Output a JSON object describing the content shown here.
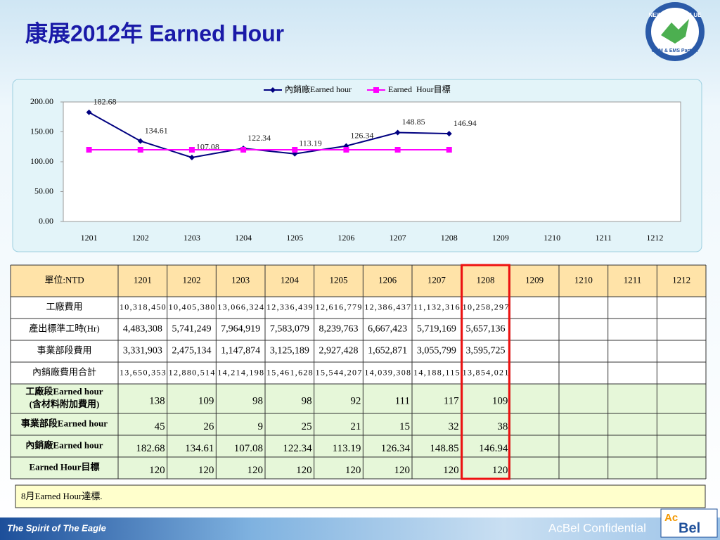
{
  "header": {
    "title": "康展2012年 Earned Hour"
  },
  "logo": {
    "ring_top": "NEW KINPO VALUE",
    "ring_bottom": "ODM & EMS Partner"
  },
  "chart_data": {
    "type": "line",
    "categories": [
      "1201",
      "1202",
      "1203",
      "1204",
      "1205",
      "1206",
      "1207",
      "1208",
      "1209",
      "1210",
      "1211",
      "1212"
    ],
    "series": [
      {
        "name": "內銷廠Earned hour",
        "color": "#000080",
        "marker": "diamond",
        "values": [
          182.68,
          134.61,
          107.08,
          122.34,
          113.19,
          126.34,
          148.85,
          146.94,
          null,
          null,
          null,
          null
        ]
      },
      {
        "name": "Earned  Hour目標",
        "color": "#ff00ff",
        "marker": "square",
        "values": [
          120,
          120,
          120,
          120,
          120,
          120,
          120,
          120,
          null,
          null,
          null,
          null
        ]
      }
    ],
    "data_labels_series": 0,
    "ylim": [
      0,
      200
    ],
    "yticks": [
      {
        "value": 0,
        "label": "0.00"
      },
      {
        "value": 50,
        "label": "50.00"
      },
      {
        "value": 100,
        "label": "100.00"
      },
      {
        "value": 150,
        "label": "150.00"
      },
      {
        "value": 200,
        "label": "200.00"
      }
    ],
    "grid": false,
    "legend": "top"
  },
  "table": {
    "header": [
      "單位:NTD",
      "1201",
      "1202",
      "1203",
      "1204",
      "1205",
      "1206",
      "1207",
      "1208",
      "1209",
      "1210",
      "1211",
      "1212"
    ],
    "highlight_column": "1208",
    "rows": [
      {
        "label": [
          "工廠費用"
        ],
        "cells": [
          "10,318,450",
          "10,405,380",
          "13,066,324",
          "12,336,439",
          "12,616,779",
          "12,386,437",
          "11,132,316",
          "10,258,297"
        ]
      },
      {
        "label": [
          "產出標準工時(Hr)"
        ],
        "cells": [
          "4,483,308",
          "5,741,249",
          "7,964,919",
          "7,583,079",
          "8,239,763",
          "6,667,423",
          "5,719,169",
          "5,657,136"
        ]
      },
      {
        "label": [
          "事業部段費用"
        ],
        "cells": [
          "3,331,903",
          "2,475,134",
          "1,147,874",
          "3,125,189",
          "2,927,428",
          "1,652,871",
          "3,055,799",
          "3,595,725"
        ]
      },
      {
        "label": [
          "內銷廠費用合計"
        ],
        "cells": [
          "13,650,353",
          "12,880,514",
          "14,214,198",
          "15,461,628",
          "15,544,207",
          "14,039,308",
          "14,188,115",
          "13,854,021"
        ]
      },
      {
        "label": [
          "工廠段Earned hour",
          "(含材料附加費用)"
        ],
        "cells": [
          138,
          109,
          98,
          98,
          92,
          111,
          117,
          109
        ]
      },
      {
        "label": [
          "事業部段Earned hour"
        ],
        "cells": [
          45,
          26,
          9,
          25,
          21,
          15,
          32,
          38
        ]
      },
      {
        "label": [
          "內銷廠Earned hour"
        ],
        "cells": [
          182.68,
          134.61,
          107.08,
          122.34,
          113.19,
          126.34,
          148.85,
          146.94
        ]
      },
      {
        "label": [
          "Earned  Hour目標"
        ],
        "cells": [
          120,
          120,
          120,
          120,
          120,
          120,
          120,
          120
        ]
      }
    ]
  },
  "note": "8月Earned Hour達標.",
  "footer": {
    "left": "The Spirit of The Eagle",
    "right": "AcBel Confidential",
    "brand_a": "Ac",
    "brand_b": "Bel"
  }
}
